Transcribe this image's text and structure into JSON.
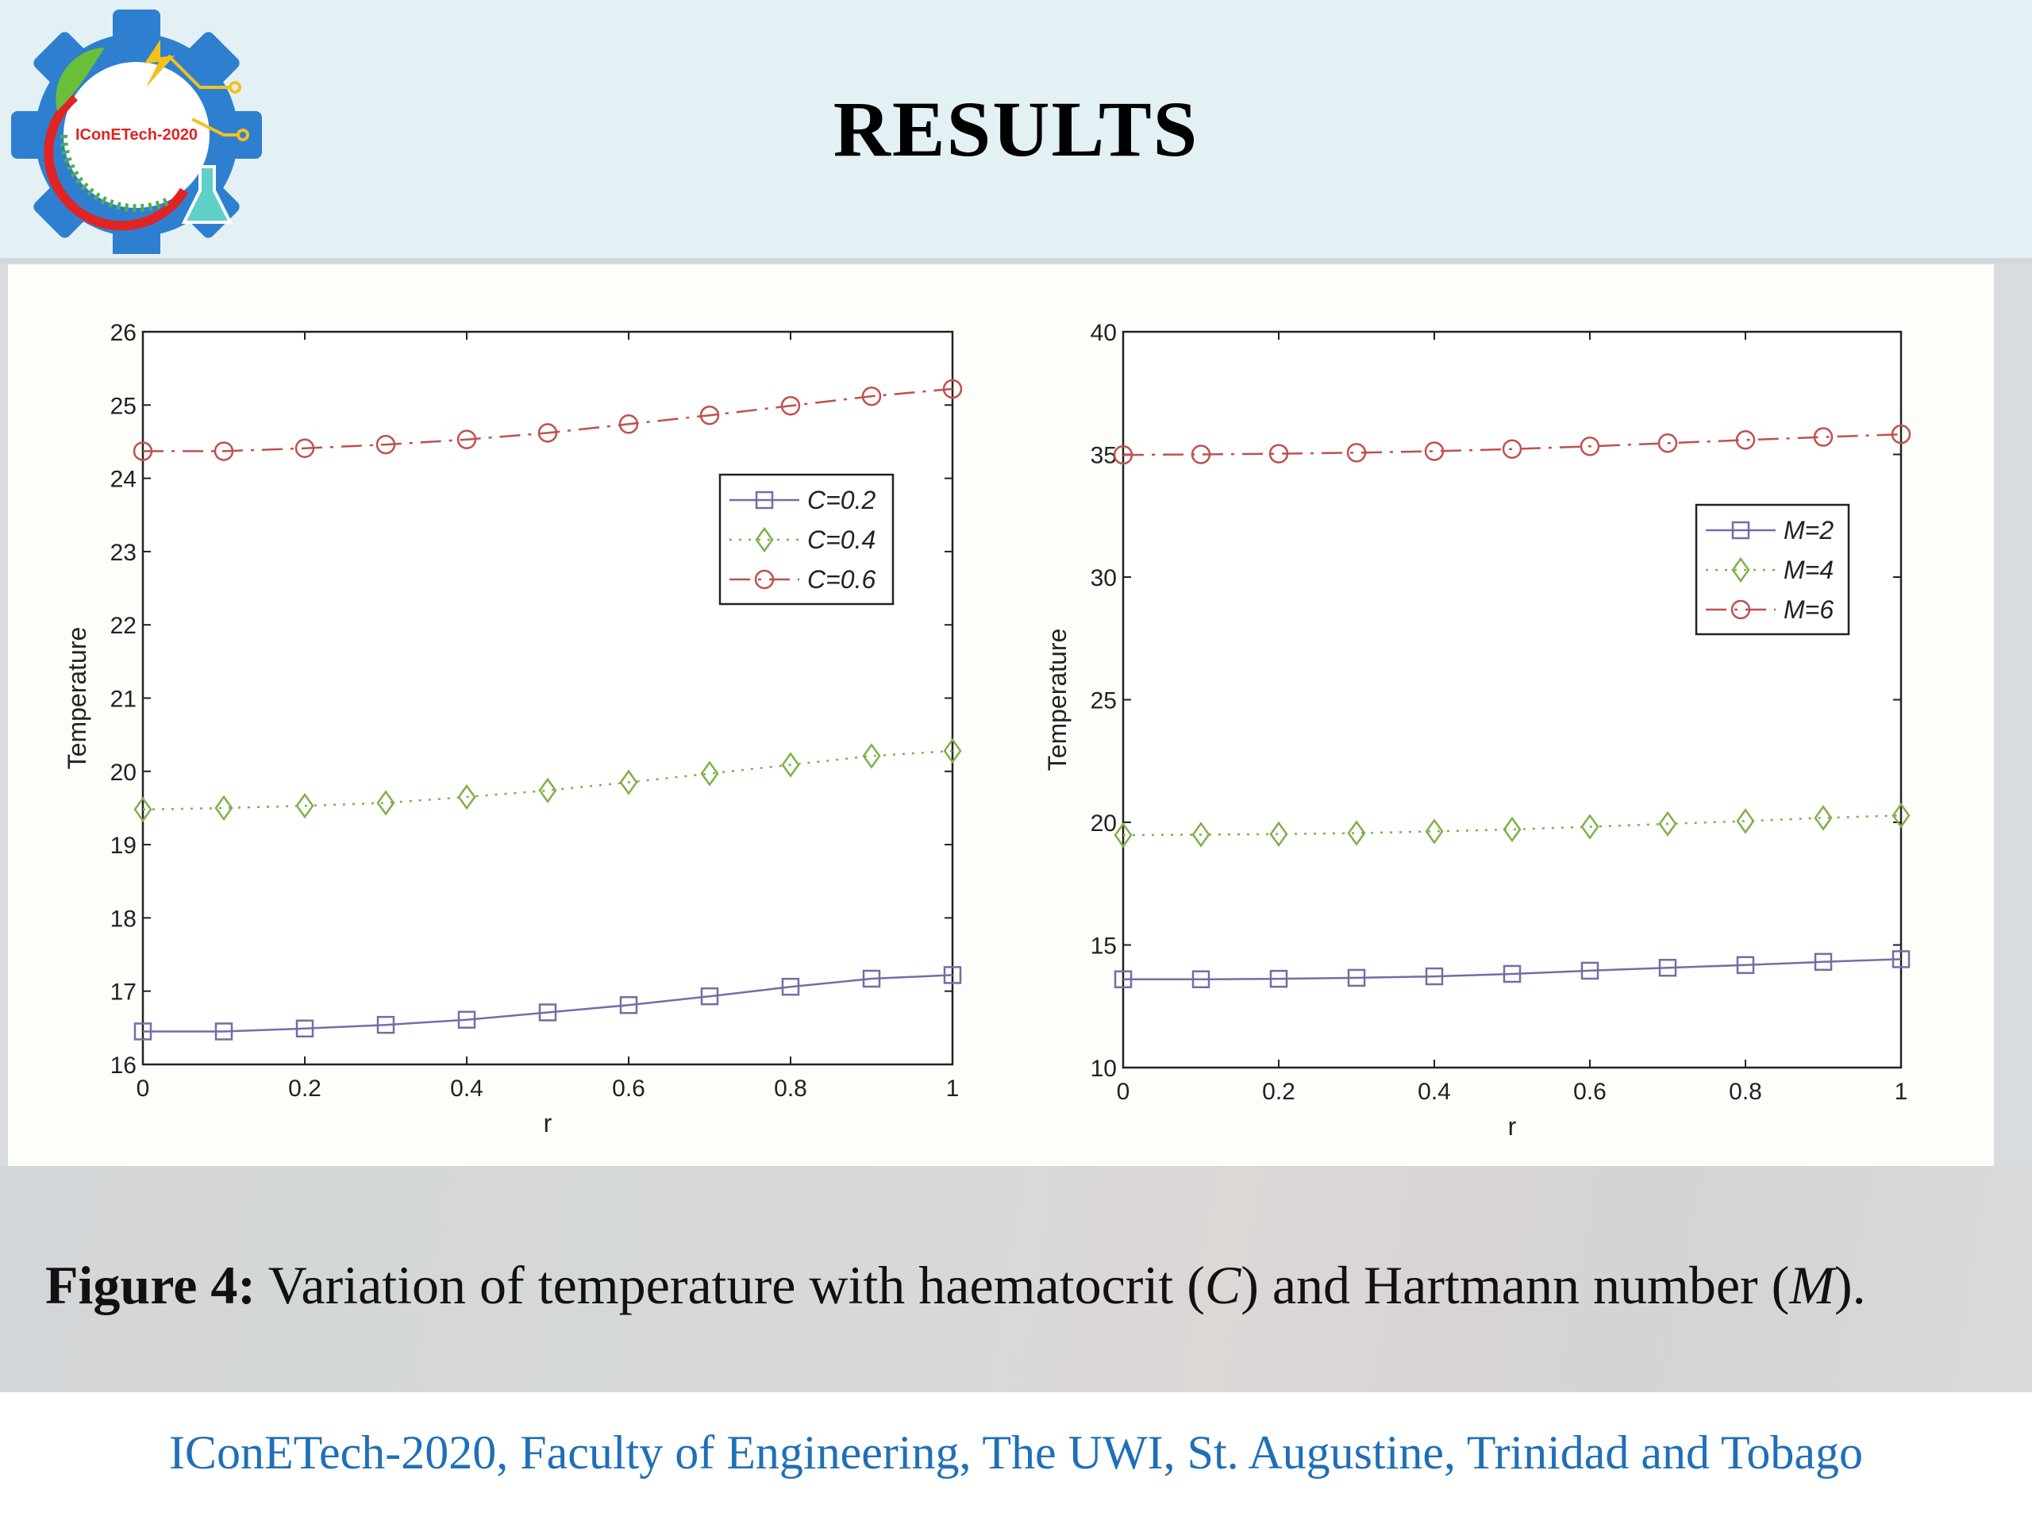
{
  "header": {
    "title": "RESULTS",
    "logo_text": "IConETech-2020"
  },
  "caption": {
    "label": "Figure 4:",
    "text_1": " Variation of temperature with haematocrit (",
    "var_c": "C",
    "text_2": ") and Hartmann number (",
    "var_m": "M",
    "text_3": ")."
  },
  "footer": {
    "text": "IConETech-2020, Faculty of Engineering, The UWI, St. Augustine, Trinidad and Tobago"
  },
  "colors": {
    "series_blue": "#6f6fa8",
    "series_green": "#7fb04a",
    "series_red": "#c0504d",
    "footer_text": "#1f6fb8"
  },
  "chart_data": [
    {
      "type": "line",
      "xlabel": "r",
      "ylabel": "Temperature",
      "xlim": [
        0,
        1
      ],
      "ylim": [
        16,
        26
      ],
      "xticks": [
        0,
        0.2,
        0.4,
        0.6,
        0.8,
        1
      ],
      "yticks": [
        16,
        17,
        18,
        19,
        20,
        21,
        22,
        23,
        24,
        25,
        26
      ],
      "legend_position": "top-right",
      "x": [
        0,
        0.1,
        0.2,
        0.3,
        0.4,
        0.5,
        0.6,
        0.7,
        0.8,
        0.9,
        1
      ],
      "series": [
        {
          "name": "C=0.2",
          "color": "#6f6fa8",
          "marker": "square",
          "line": "solid",
          "values": [
            16.45,
            16.45,
            16.49,
            16.54,
            16.61,
            16.71,
            16.81,
            16.93,
            17.06,
            17.17,
            17.22
          ]
        },
        {
          "name": "C=0.4",
          "color": "#7fb04a",
          "marker": "diamond",
          "line": "dotted",
          "values": [
            19.48,
            19.5,
            19.53,
            19.57,
            19.65,
            19.74,
            19.85,
            19.97,
            20.09,
            20.21,
            20.28
          ]
        },
        {
          "name": "C=0.6",
          "color": "#c0504d",
          "marker": "circle",
          "line": "dashdot",
          "values": [
            24.37,
            24.37,
            24.41,
            24.46,
            24.53,
            24.62,
            24.74,
            24.86,
            24.99,
            25.12,
            25.22
          ]
        }
      ]
    },
    {
      "type": "line",
      "xlabel": "r",
      "ylabel": "Temperature",
      "xlim": [
        0,
        1
      ],
      "ylim": [
        10,
        40
      ],
      "xticks": [
        0,
        0.2,
        0.4,
        0.6,
        0.8,
        1
      ],
      "yticks": [
        10,
        15,
        20,
        25,
        30,
        35,
        40
      ],
      "legend_position": "right",
      "x": [
        0,
        0.1,
        0.2,
        0.3,
        0.4,
        0.5,
        0.6,
        0.7,
        0.8,
        0.9,
        1
      ],
      "series": [
        {
          "name": "M=2",
          "color": "#6f6fa8",
          "marker": "square",
          "line": "solid",
          "values": [
            13.6,
            13.6,
            13.62,
            13.66,
            13.72,
            13.82,
            13.95,
            14.07,
            14.18,
            14.31,
            14.42
          ]
        },
        {
          "name": "M=4",
          "color": "#7fb04a",
          "marker": "diamond",
          "line": "dotted",
          "values": [
            19.48,
            19.5,
            19.52,
            19.56,
            19.63,
            19.71,
            19.82,
            19.94,
            20.05,
            20.18,
            20.28
          ]
        },
        {
          "name": "M=6",
          "color": "#c0504d",
          "marker": "circle",
          "line": "dashdot",
          "values": [
            34.98,
            35.0,
            35.03,
            35.07,
            35.13,
            35.22,
            35.33,
            35.46,
            35.59,
            35.71,
            35.82
          ]
        }
      ]
    }
  ]
}
